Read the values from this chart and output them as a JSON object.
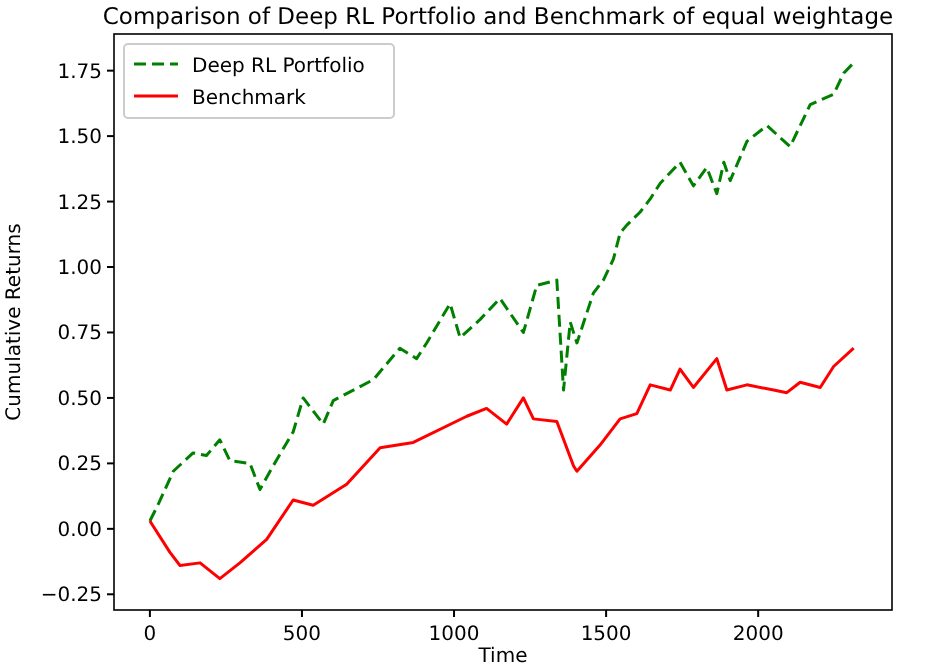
{
  "chart_data": {
    "type": "line",
    "title": "Comparison of Deep RL Portfolio and Benchmark of equal weightage",
    "xlabel": "Time",
    "ylabel": "Cumulative Returns",
    "xlim": [
      -118,
      2440
    ],
    "xticks": [
      0,
      500,
      1000,
      1500,
      2000
    ],
    "ylim": [
      -0.31,
      1.89
    ],
    "yticks": [
      {
        "value": -0.25,
        "label": "−0.25"
      },
      {
        "value": 0,
        "label": "0.00"
      },
      {
        "value": 0.25,
        "label": "0.25"
      },
      {
        "value": 0.5,
        "label": "0.50"
      },
      {
        "value": 0.75,
        "label": "0.75"
      },
      {
        "value": 1,
        "label": "1.00"
      },
      {
        "value": 1.25,
        "label": "1.25"
      },
      {
        "value": 1.5,
        "label": "1.50"
      },
      {
        "value": 1.75,
        "label": "1.75"
      }
    ],
    "legend": "top left",
    "grid": false,
    "series": [
      {
        "name": "Deep RL Portfolio",
        "color": "#008000",
        "line_style": "dashed",
        "x": [
          0,
          30,
          77,
          142,
          186,
          230,
          263,
          329,
          362,
          405,
          471,
          504,
          570,
          603,
          735,
          822,
          877,
          910,
          987,
          1020,
          1086,
          1151,
          1228,
          1272,
          1338,
          1360,
          1382,
          1404,
          1458,
          1491,
          1524,
          1546,
          1568,
          1612,
          1645,
          1678,
          1743,
          1787,
          1831,
          1864,
          1887,
          1908,
          1963,
          2029,
          2105,
          2171,
          2248,
          2281,
          2314
        ],
        "values": [
          0.03,
          0.1,
          0.22,
          0.29,
          0.28,
          0.34,
          0.26,
          0.25,
          0.15,
          0.24,
          0.37,
          0.5,
          0.4,
          0.49,
          0.57,
          0.69,
          0.65,
          0.71,
          0.86,
          0.73,
          0.8,
          0.88,
          0.75,
          0.93,
          0.95,
          0.53,
          0.79,
          0.71,
          0.9,
          0.95,
          1.03,
          1.13,
          1.16,
          1.21,
          1.26,
          1.32,
          1.4,
          1.31,
          1.38,
          1.28,
          1.4,
          1.33,
          1.48,
          1.54,
          1.46,
          1.62,
          1.66,
          1.74,
          1.78
        ]
      },
      {
        "name": "Benchmark",
        "color": "#ff0000",
        "line_style": "solid",
        "x": [
          0,
          66,
          99,
          165,
          230,
          296,
          384,
          471,
          537,
          647,
          757,
          866,
          1042,
          1107,
          1173,
          1228,
          1261,
          1338,
          1393,
          1404,
          1480,
          1546,
          1601,
          1645,
          1711,
          1743,
          1787,
          1864,
          1897,
          1963,
          2051,
          2094,
          2138,
          2204,
          2248,
          2314
        ],
        "values": [
          0.03,
          -0.09,
          -0.14,
          -0.13,
          -0.19,
          -0.13,
          -0.04,
          0.11,
          0.09,
          0.17,
          0.31,
          0.33,
          0.43,
          0.46,
          0.4,
          0.5,
          0.42,
          0.41,
          0.24,
          0.22,
          0.32,
          0.42,
          0.44,
          0.55,
          0.53,
          0.61,
          0.54,
          0.65,
          0.53,
          0.55,
          0.53,
          0.52,
          0.56,
          0.54,
          0.62,
          0.69
        ]
      }
    ]
  }
}
